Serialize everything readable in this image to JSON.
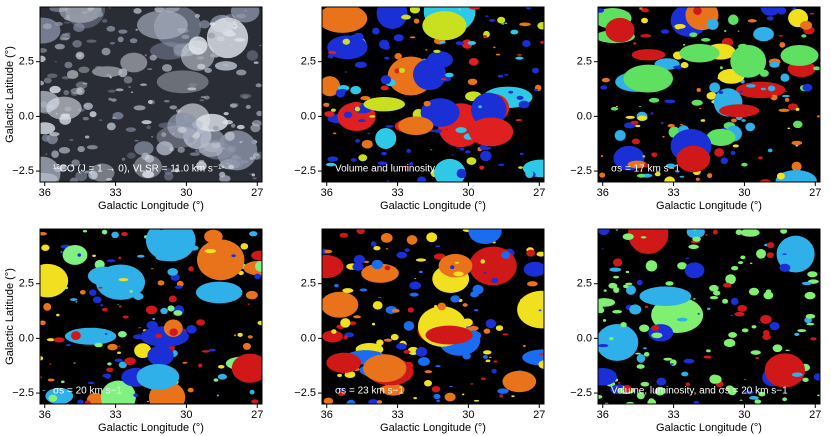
{
  "chart_data": [
    {
      "type": "image",
      "annotation": "¹²CO (J = 1 → 0), VLSR = 11.0 km s⁻¹",
      "xlabel": "Galactic Longitude (°)",
      "ylabel": "Galactic Latitude (°)",
      "xlim": [
        36.2,
        26.8
      ],
      "ylim": [
        -3.0,
        5.0
      ],
      "xticks": [
        36,
        33,
        30,
        27
      ],
      "yticks": [
        {
          "value": -2.5,
          "label": "−2.5"
        },
        {
          "value": 0,
          "label": "0.0"
        },
        2.5
      ],
      "colors": [
        "#8a93a8",
        "#b6bdcc",
        "#dfe3ea"
      ]
    },
    {
      "type": "image",
      "annotation": "Volume and luminosity",
      "xlabel": "Galactic Longitude (°)",
      "xlim": [
        36.2,
        26.8
      ],
      "ylim": [
        -3.0,
        5.0
      ],
      "xticks": [
        36,
        33,
        30,
        27
      ],
      "yticks": [
        {
          "value": -2.5,
          "label": "−2.5"
        },
        {
          "value": 0,
          "label": "0.0"
        },
        2.5
      ],
      "colors": [
        "#1a2fd6",
        "#1a2fd6",
        "#1a2fd6",
        "#e8731a",
        "#e02020",
        "#2fc9e8",
        "#c8e020"
      ]
    },
    {
      "type": "image",
      "annotation": "σs = 17 km s−1",
      "xlabel": "Galactic Longitude (°)",
      "xlim": [
        36.2,
        26.8
      ],
      "ylim": [
        -3.0,
        5.0
      ],
      "xticks": [
        36,
        33,
        30,
        27
      ],
      "yticks": [
        {
          "value": -2.5,
          "label": "−2.5"
        },
        {
          "value": 0,
          "label": "0.0"
        },
        2.5
      ],
      "colors": [
        "#d01818",
        "#1a2fd6",
        "#2fb0e8",
        "#f0e020",
        "#e8731a",
        "#60e060"
      ]
    },
    {
      "type": "image",
      "annotation": "σs = 20 km s−1",
      "xlabel": "Galactic Longitude (°)",
      "ylabel": "Galactic Latitude (°)",
      "xlim": [
        36.2,
        26.8
      ],
      "ylim": [
        -3.0,
        5.0
      ],
      "xticks": [
        36,
        33,
        30,
        27
      ],
      "yticks": [
        {
          "value": -2.5,
          "label": "−2.5"
        },
        {
          "value": 0,
          "label": "0.0"
        },
        2.5
      ],
      "colors": [
        "#e8731a",
        "#80f080",
        "#1a2fd6",
        "#d01818",
        "#2fb0e8",
        "#f0e020"
      ]
    },
    {
      "type": "image",
      "annotation": "σs = 23 km s−1",
      "xlabel": "Galactic Longitude (°)",
      "xlim": [
        36.2,
        26.8
      ],
      "ylim": [
        -3.0,
        5.0
      ],
      "xticks": [
        36,
        33,
        30,
        27
      ],
      "yticks": [
        {
          "value": -2.5,
          "label": "−2.5"
        },
        {
          "value": 0,
          "label": "0.0"
        },
        2.5
      ],
      "colors": [
        "#1a6cf0",
        "#1a2fd6",
        "#e8731a",
        "#d01818",
        "#f0e020"
      ]
    },
    {
      "type": "image",
      "annotation": "Volume, luminosity, and σs = 20 km s−1",
      "xlabel": "Galactic Longitude (°)",
      "xlim": [
        36.2,
        26.8
      ],
      "ylim": [
        -3.0,
        5.0
      ],
      "xticks": [
        36,
        33,
        30,
        27
      ],
      "yticks": [
        {
          "value": -2.5,
          "label": "−2.5"
        },
        {
          "value": 0,
          "label": "0.0"
        },
        2.5
      ],
      "colors": [
        "#80f070",
        "#80f070",
        "#80f070",
        "#1a2fd6",
        "#2fb0e8",
        "#d01818"
      ]
    }
  ]
}
